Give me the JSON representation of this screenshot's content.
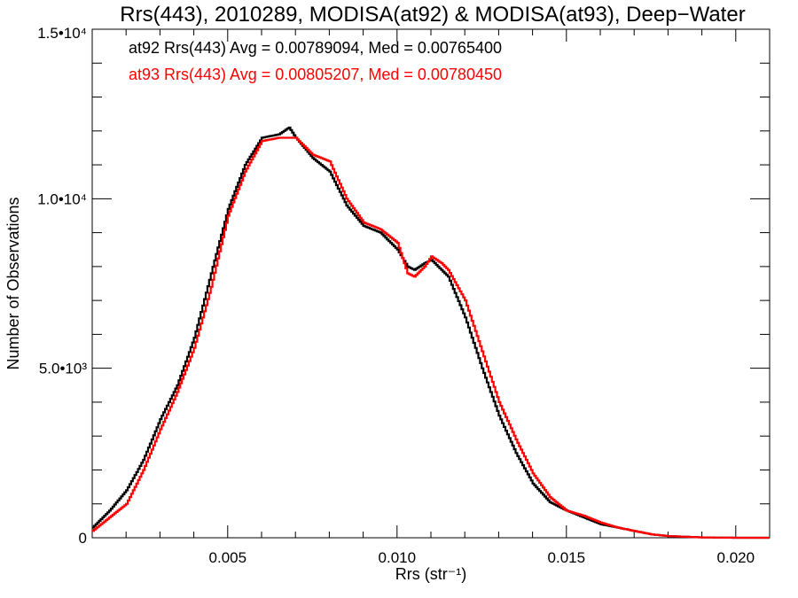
{
  "chart_data": {
    "type": "line",
    "step": true,
    "title": "Rrs(443), 2010289, MODISA(at92) & MODISA(at93), Deep−Water",
    "xlabel": "Rrs (str⁻¹)",
    "ylabel": "Number of Observations",
    "xlim": [
      0.001,
      0.021
    ],
    "ylim": [
      0,
      15000
    ],
    "x_ticks": [
      {
        "value": 0.005,
        "label": "0.005"
      },
      {
        "value": 0.01,
        "label": "0.010"
      },
      {
        "value": 0.015,
        "label": "0.015"
      },
      {
        "value": 0.02,
        "label": "0.020"
      }
    ],
    "y_ticks": [
      {
        "value": 0,
        "label": "0"
      },
      {
        "value": 5000,
        "label": "5.0•10³"
      },
      {
        "value": 10000,
        "label": "1.0•10⁴"
      },
      {
        "value": 15000,
        "label": "1.5•10⁴"
      }
    ],
    "grid": false,
    "legend_position": "top-left",
    "series": [
      {
        "name": "at92",
        "legend_text": "at92 Rrs(443) Avg = 0.00789094, Med = 0.00765400",
        "color": "#000000",
        "x": [
          0.001,
          0.0015,
          0.002,
          0.0025,
          0.003,
          0.0035,
          0.004,
          0.0045,
          0.005,
          0.0055,
          0.006,
          0.0065,
          0.0068,
          0.007,
          0.0075,
          0.008,
          0.0085,
          0.009,
          0.0095,
          0.01,
          0.0103,
          0.0105,
          0.0108,
          0.011,
          0.0113,
          0.0115,
          0.012,
          0.0125,
          0.013,
          0.0135,
          0.014,
          0.0145,
          0.015,
          0.0155,
          0.016,
          0.0165,
          0.017,
          0.0175,
          0.018,
          0.0185,
          0.019,
          0.02,
          0.021
        ],
        "y": [
          300,
          800,
          1400,
          2300,
          3500,
          4500,
          5900,
          7800,
          9700,
          11000,
          11800,
          11900,
          12100,
          11800,
          11200,
          10800,
          9800,
          9200,
          9000,
          8500,
          8000,
          7900,
          8100,
          8200,
          7900,
          7700,
          6500,
          5000,
          3600,
          2500,
          1600,
          1050,
          800,
          600,
          400,
          300,
          200,
          100,
          50,
          30,
          10,
          0,
          0
        ]
      },
      {
        "name": "at93",
        "legend_text": "at93 Rrs(443) Avg = 0.00805207, Med = 0.00780450",
        "color": "#ff0000",
        "x": [
          0.001,
          0.0015,
          0.002,
          0.0025,
          0.003,
          0.0035,
          0.004,
          0.0045,
          0.005,
          0.0055,
          0.006,
          0.0065,
          0.0068,
          0.007,
          0.0075,
          0.008,
          0.0085,
          0.009,
          0.0095,
          0.01,
          0.0103,
          0.0105,
          0.0108,
          0.011,
          0.0113,
          0.0115,
          0.012,
          0.0125,
          0.013,
          0.0135,
          0.014,
          0.0145,
          0.015,
          0.0155,
          0.016,
          0.0165,
          0.017,
          0.0175,
          0.018,
          0.0185,
          0.019,
          0.02,
          0.021
        ],
        "y": [
          200,
          600,
          1000,
          2000,
          3200,
          4300,
          5600,
          7400,
          9500,
          10800,
          11700,
          11800,
          11800,
          11800,
          11300,
          11100,
          10000,
          9300,
          9100,
          8700,
          7800,
          7700,
          8000,
          8300,
          8100,
          7900,
          7000,
          5500,
          4000,
          2900,
          1900,
          1200,
          800,
          650,
          450,
          300,
          200,
          100,
          50,
          30,
          10,
          0,
          0
        ]
      }
    ]
  }
}
